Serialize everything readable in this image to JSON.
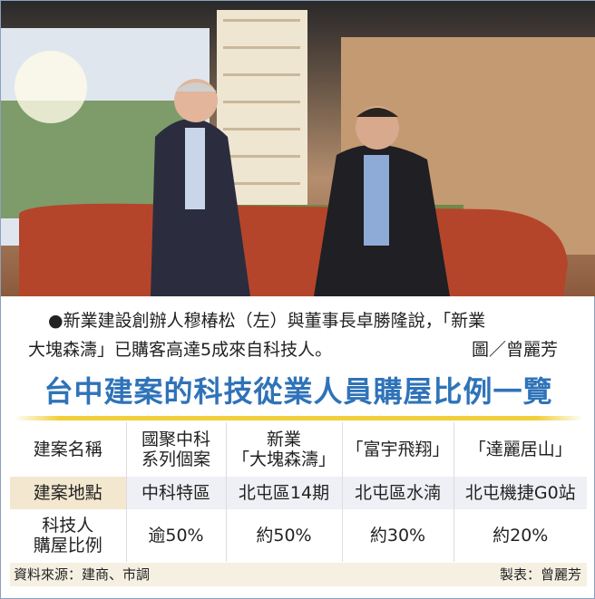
{
  "caption": {
    "line1": "●新業建設創辦人穆椿松（左）與董事長卓勝隆說，「新業",
    "line2": "大塊森濤」已購客高達5成來自科技人。",
    "credit": "圖／曾麗芳"
  },
  "title": "台中建案的科技從業人員購屋比例一覽",
  "table": {
    "header": {
      "label": "建案名稱",
      "cols": [
        [
          "國聚中科",
          "系列個案"
        ],
        [
          "新業",
          "「大塊森濤」"
        ],
        [
          "「富宇飛翔」",
          ""
        ],
        [
          "「達麗居山」",
          ""
        ]
      ]
    },
    "location": {
      "label": "建案地點",
      "values": [
        "中科特區",
        "北屯區14期",
        "北屯區水湳",
        "北屯機捷G0站"
      ]
    },
    "ratio": {
      "label": [
        "科技人",
        "購屋比例"
      ],
      "values": [
        "逾50%",
        "約50%",
        "約30%",
        "約20%"
      ]
    }
  },
  "footer": {
    "source": "資料來源：建商、市調",
    "maker": "製表：曾麗芳"
  },
  "colors": {
    "title": "#2f73b8",
    "rule": "#f2cf3a",
    "location_row": "#eef0f5"
  }
}
